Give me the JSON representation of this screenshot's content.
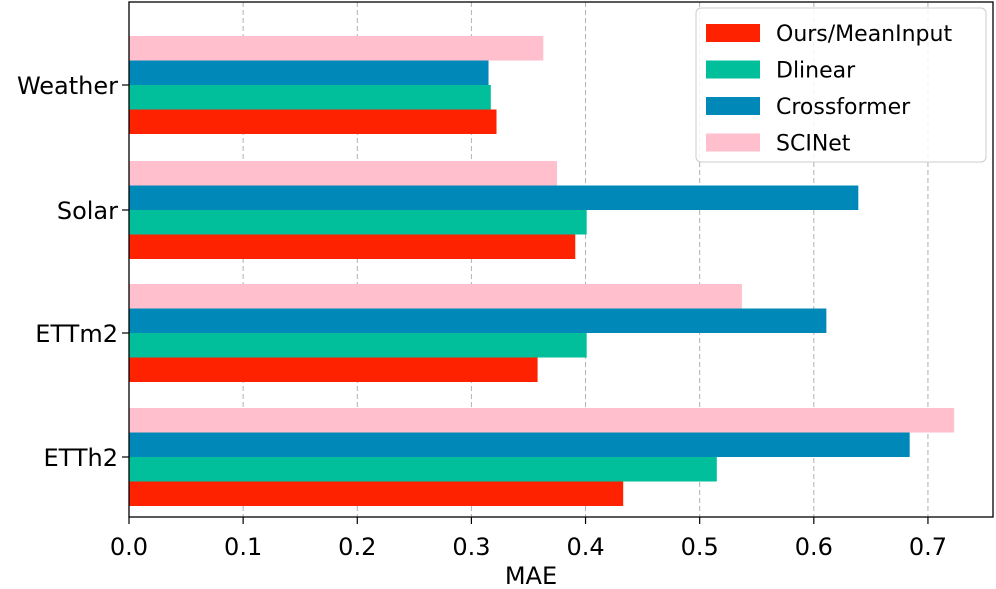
{
  "chart_data": {
    "type": "bar",
    "orientation": "horizontal",
    "title": "",
    "xlabel": "MAE",
    "ylabel": "",
    "xlim": [
      0.0,
      0.757
    ],
    "xticks": [
      0.0,
      0.1,
      0.2,
      0.3,
      0.4,
      0.5,
      0.6,
      0.7
    ],
    "xtick_labels": [
      "0.0",
      "0.1",
      "0.2",
      "0.3",
      "0.4",
      "0.5",
      "0.6",
      "0.7"
    ],
    "grid": "vertical dashed",
    "legend_position": "top-right",
    "categories": [
      "Weather",
      "Solar",
      "ETTm2",
      "ETTh2"
    ],
    "series": [
      {
        "name": "Ours/MeanInput",
        "color": "#ff2200",
        "values": [
          0.322,
          0.391,
          0.358,
          0.433
        ]
      },
      {
        "name": "Dlinear",
        "color": "#00bf9a",
        "values": [
          0.317,
          0.401,
          0.401,
          0.515
        ]
      },
      {
        "name": "Crossformer",
        "color": "#0089b8",
        "values": [
          0.315,
          0.639,
          0.611,
          0.684
        ]
      },
      {
        "name": "SCINet",
        "color": "#ffbfcc",
        "values": [
          0.363,
          0.375,
          0.537,
          0.723
        ]
      }
    ]
  }
}
